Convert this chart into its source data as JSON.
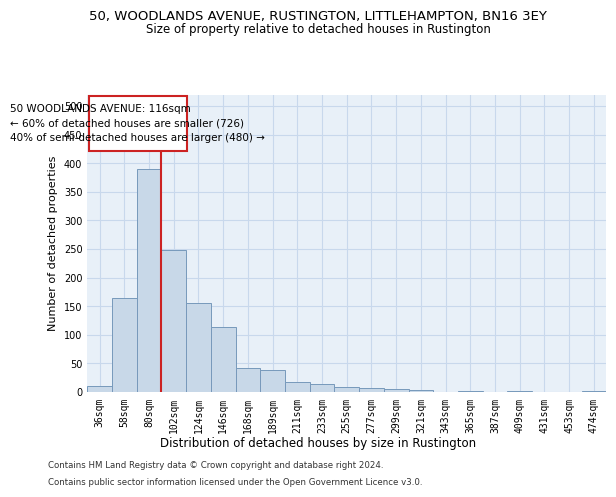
{
  "title1": "50, WOODLANDS AVENUE, RUSTINGTON, LITTLEHAMPTON, BN16 3EY",
  "title2": "Size of property relative to detached houses in Rustington",
  "xlabel": "Distribution of detached houses by size in Rustington",
  "ylabel": "Number of detached properties",
  "categories": [
    "36sqm",
    "58sqm",
    "80sqm",
    "102sqm",
    "124sqm",
    "146sqm",
    "168sqm",
    "189sqm",
    "211sqm",
    "233sqm",
    "255sqm",
    "277sqm",
    "299sqm",
    "321sqm",
    "343sqm",
    "365sqm",
    "387sqm",
    "409sqm",
    "431sqm",
    "453sqm",
    "474sqm"
  ],
  "values": [
    10,
    165,
    390,
    248,
    155,
    113,
    42,
    38,
    17,
    14,
    8,
    7,
    5,
    3,
    0,
    2,
    0,
    2,
    0,
    0,
    2
  ],
  "bar_color": "#c8d8e8",
  "bar_edge_color": "#7799bb",
  "bar_linewidth": 0.7,
  "grid_color": "#c8d8ec",
  "bg_color": "#e8f0f8",
  "vline_color": "#cc2222",
  "annotation_text": "50 WOODLANDS AVENUE: 116sqm\n← 60% of detached houses are smaller (726)\n40% of semi-detached houses are larger (480) →",
  "annotation_box_color": "#ffffff",
  "annotation_box_edge": "#cc2222",
  "ylim": [
    0,
    520
  ],
  "yticks": [
    0,
    50,
    100,
    150,
    200,
    250,
    300,
    350,
    400,
    450,
    500
  ],
  "footer1": "Contains HM Land Registry data © Crown copyright and database right 2024.",
  "footer2": "Contains public sector information licensed under the Open Government Licence v3.0.",
  "title1_fontsize": 9.5,
  "title2_fontsize": 8.5,
  "tick_fontsize": 7,
  "xlabel_fontsize": 8.5,
  "ylabel_fontsize": 8
}
